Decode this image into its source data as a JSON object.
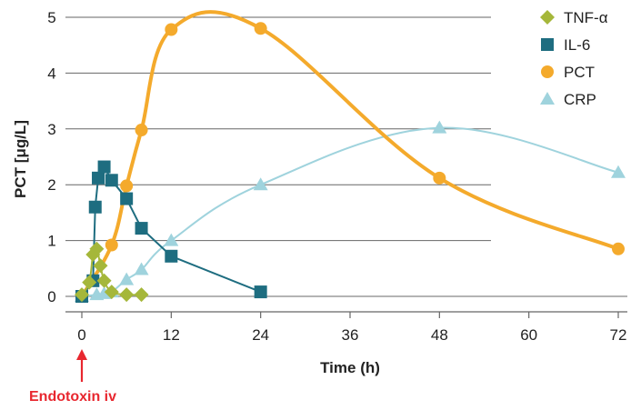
{
  "chart_data": {
    "type": "line",
    "xlabel": "Time (h)",
    "ylabel": "PCT [μg/L]",
    "xlim": [
      -2,
      72
    ],
    "ylim": [
      0,
      5
    ],
    "x_ticks": [
      0,
      12,
      24,
      36,
      48,
      60,
      72
    ],
    "y_ticks": [
      0,
      1,
      2,
      3,
      4,
      5
    ],
    "grid": "horizontal",
    "legend_position": "top-right",
    "annotation": {
      "text": "Endotoxin iv",
      "x": 0,
      "color": "#e8272f"
    },
    "series": [
      {
        "name": "TNF-α",
        "marker": "diamond",
        "color": "#a5b73a",
        "x": [
          0,
          1,
          1.5,
          2,
          2.5,
          3,
          4,
          6,
          8
        ],
        "y": [
          0.03,
          0.25,
          0.75,
          0.85,
          0.55,
          0.28,
          0.08,
          0.03,
          0.03
        ]
      },
      {
        "name": "IL-6",
        "marker": "square",
        "color": "#1e6d80",
        "x": [
          0,
          1.5,
          1.8,
          2.2,
          3,
          4,
          6,
          8,
          12,
          24
        ],
        "y": [
          0,
          0.28,
          1.6,
          2.12,
          2.32,
          2.08,
          1.75,
          1.22,
          0.72,
          0.08
        ]
      },
      {
        "name": "PCT",
        "marker": "circle",
        "color": "#f4aa2c",
        "x": [
          0,
          4,
          6,
          8,
          12,
          24,
          48,
          72
        ],
        "y": [
          0,
          0.92,
          1.98,
          2.98,
          4.78,
          4.8,
          2.12,
          0.85
        ]
      },
      {
        "name": "CRP",
        "marker": "triangle",
        "color": "#9fd3dd",
        "x": [
          0,
          2,
          3,
          4,
          6,
          8,
          12,
          24,
          48,
          72
        ],
        "y": [
          0,
          0.03,
          0.05,
          0.08,
          0.3,
          0.48,
          1.0,
          2.0,
          3.02,
          2.22
        ]
      }
    ]
  }
}
